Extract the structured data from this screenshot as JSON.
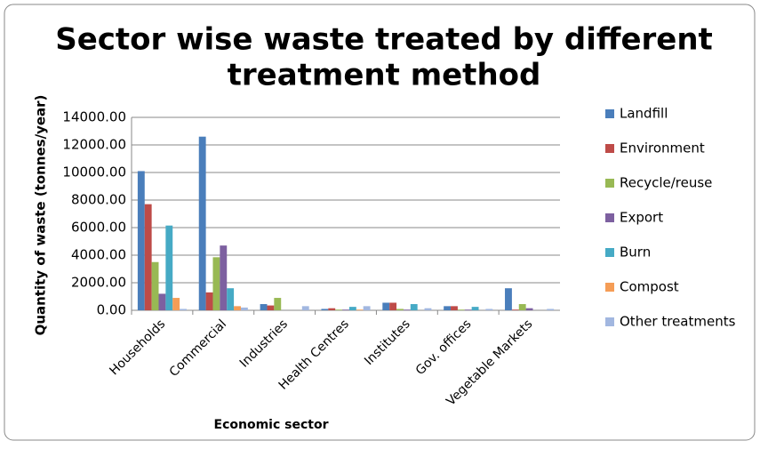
{
  "chart_data": {
    "type": "bar",
    "title": "Sector wise waste treated by different",
    "subtitle": "treatment method",
    "x_label": "Economic sector",
    "y_label": "Quantity of waste (tonnes/year)",
    "categories": [
      "Households",
      "Commercial",
      "Industries",
      "Health Centres",
      "Institutes",
      "Gov. offices",
      "Vegetable Markets"
    ],
    "series": [
      {
        "name": "Landfill",
        "color": "#4a7ebb",
        "values": [
          10100,
          12600,
          450,
          100,
          550,
          300,
          1600
        ]
      },
      {
        "name": "Environment",
        "color": "#be4b48",
        "values": [
          7700,
          1300,
          350,
          150,
          550,
          300,
          50
        ]
      },
      {
        "name": "Recycle/reuse",
        "color": "#98b954",
        "values": [
          3500,
          3850,
          900,
          50,
          100,
          50,
          450
        ]
      },
      {
        "name": "Export",
        "color": "#7d60a0",
        "values": [
          1200,
          4700,
          0,
          50,
          50,
          50,
          150
        ]
      },
      {
        "name": "Burn",
        "color": "#46aac5",
        "values": [
          6150,
          1600,
          0,
          250,
          450,
          250,
          0
        ]
      },
      {
        "name": "Compost",
        "color": "#f59d56",
        "values": [
          900,
          300,
          0,
          50,
          0,
          0,
          0
        ]
      },
      {
        "name": "Other treatments",
        "color": "#a2b7e0",
        "values": [
          100,
          200,
          300,
          300,
          150,
          100,
          100
        ]
      }
    ],
    "ylim": [
      0,
      14000
    ],
    "yticks": [
      {
        "value": 0,
        "label": "0.00"
      },
      {
        "value": 2000,
        "label": "2000.00"
      },
      {
        "value": 4000,
        "label": "4000.00"
      },
      {
        "value": 6000,
        "label": "6000.00"
      },
      {
        "value": 8000,
        "label": "8000.00"
      },
      {
        "value": 10000,
        "label": "10000.00"
      },
      {
        "value": 12000,
        "label": "12000.00"
      },
      {
        "value": 14000,
        "label": "14000.00"
      }
    ],
    "grid": true,
    "legend": "right"
  }
}
